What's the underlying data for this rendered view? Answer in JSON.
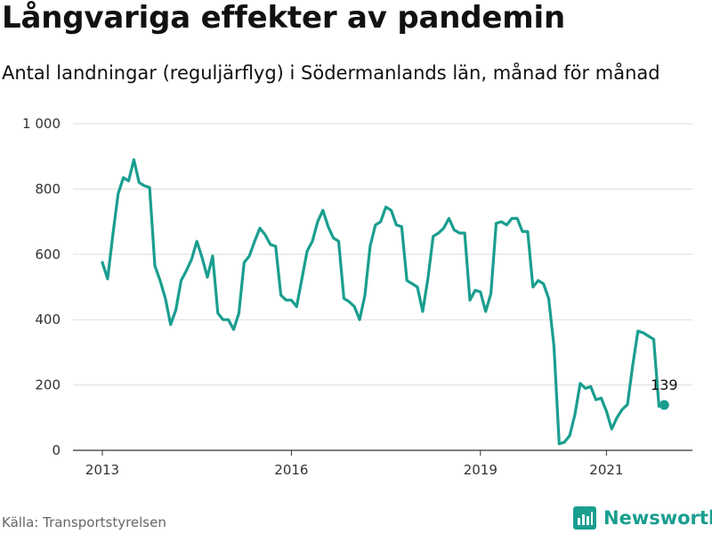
{
  "title": "Långvariga effekter av pandemin",
  "subtitle": "Antal landningar (reguljärflyg) i Södermanlands län, månad för månad",
  "source": "Källa: Transportstyrelsen",
  "brand": {
    "name": "Newsworthy",
    "icon": "bar-chart-icon"
  },
  "colors": {
    "line": "#1a9e8f",
    "brand": "#1a9e8f",
    "grid": "#dddddd",
    "text": "#111111"
  },
  "chart_data": {
    "type": "line",
    "title": "Långvariga effekter av pandemin",
    "subtitle": "Antal landningar (reguljärflyg) i Södermanlands län, månad för månad",
    "xlabel": "",
    "ylabel": "",
    "ylim": [
      0,
      1000
    ],
    "yticks": [
      {
        "value": 0,
        "label": "0"
      },
      {
        "value": 200,
        "label": "200"
      },
      {
        "value": 400,
        "label": "400"
      },
      {
        "value": 600,
        "label": "600"
      },
      {
        "value": 800,
        "label": "800"
      },
      {
        "value": 1000,
        "label": "1 000"
      }
    ],
    "xticks": [
      {
        "value": "2013-01",
        "label": "2013"
      },
      {
        "value": "2016-01",
        "label": "2016"
      },
      {
        "value": "2019-01",
        "label": "2019"
      },
      {
        "value": "2021-01",
        "label": "2021"
      }
    ],
    "grid": true,
    "legend": "none",
    "series": [
      {
        "x": [
          "2013-01",
          "2013-02",
          "2013-03",
          "2013-04",
          "2013-05",
          "2013-06",
          "2013-07",
          "2013-08",
          "2013-09",
          "2013-10",
          "2013-11",
          "2013-12",
          "2014-01",
          "2014-02",
          "2014-03",
          "2014-04",
          "2014-05",
          "2014-06",
          "2014-07",
          "2014-08",
          "2014-09",
          "2014-10",
          "2014-11",
          "2014-12",
          "2015-01",
          "2015-02",
          "2015-03",
          "2015-04",
          "2015-05",
          "2015-06",
          "2015-07",
          "2015-08",
          "2015-09",
          "2015-10",
          "2015-11",
          "2015-12",
          "2016-01",
          "2016-02",
          "2016-03",
          "2016-04",
          "2016-05",
          "2016-06",
          "2016-07",
          "2016-08",
          "2016-09",
          "2016-10",
          "2016-11",
          "2016-12",
          "2017-01",
          "2017-02",
          "2017-03",
          "2017-04",
          "2017-05",
          "2017-06",
          "2017-07",
          "2017-08",
          "2017-09",
          "2017-10",
          "2017-11",
          "2017-12",
          "2018-01",
          "2018-02",
          "2018-03",
          "2018-04",
          "2018-05",
          "2018-06",
          "2018-07",
          "2018-08",
          "2018-09",
          "2018-10",
          "2018-11",
          "2018-12",
          "2019-01",
          "2019-02",
          "2019-03",
          "2019-04",
          "2019-05",
          "2019-06",
          "2019-07",
          "2019-08",
          "2019-09",
          "2019-10",
          "2019-11",
          "2019-12",
          "2020-01",
          "2020-02",
          "2020-03",
          "2020-04",
          "2020-05",
          "2020-06",
          "2020-07",
          "2020-08",
          "2020-09",
          "2020-10",
          "2020-11",
          "2020-12",
          "2021-01",
          "2021-02",
          "2021-03",
          "2021-04",
          "2021-05",
          "2021-06",
          "2021-07",
          "2021-08",
          "2021-09",
          "2021-10",
          "2021-11"
        ],
        "values": [
          575,
          525,
          660,
          785,
          835,
          825,
          890,
          820,
          810,
          805,
          565,
          520,
          465,
          385,
          430,
          520,
          550,
          585,
          640,
          590,
          530,
          595,
          420,
          400,
          400,
          370,
          420,
          575,
          595,
          640,
          680,
          660,
          630,
          625,
          475,
          460,
          460,
          440,
          525,
          610,
          640,
          700,
          735,
          685,
          650,
          640,
          465,
          455,
          440,
          400,
          475,
          625,
          690,
          700,
          745,
          735,
          690,
          685,
          520,
          510,
          500,
          425,
          525,
          655,
          665,
          680,
          710,
          675,
          665,
          665,
          460,
          490,
          485,
          425,
          480,
          695,
          700,
          690,
          710,
          710,
          670,
          670,
          500,
          520,
          510,
          465,
          320,
          20,
          25,
          45,
          110,
          205,
          190,
          195,
          155,
          160,
          120,
          65,
          100,
          125,
          140,
          260,
          365,
          360,
          350,
          340,
          135
        ]
      }
    ],
    "annotations": [
      {
        "x": "2021-12",
        "value": 139,
        "label": "139"
      }
    ]
  }
}
